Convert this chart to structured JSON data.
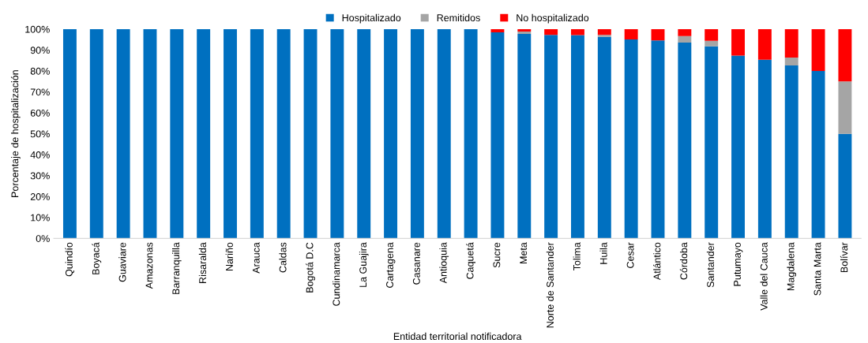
{
  "chart_data": {
    "type": "bar",
    "stacked": true,
    "xlabel": "Entidad territorial notificadora",
    "ylabel": "Porcentaje de hospitalización",
    "categories": [
      "Quindío",
      "Boyacá",
      "Guaviare",
      "Amazonas",
      "Barranquilla",
      "Risaralda",
      "Nariño",
      "Arauca",
      "Caldas",
      "Bogotá D.C",
      "Cundinamarca",
      "La Guajira",
      "Cartagena",
      "Casanare",
      "Antioquia",
      "Caquetá",
      "Sucre",
      "Meta",
      "Norte de Santander",
      "Tolima",
      "Huila",
      "Cesar",
      "Atlántico",
      "Córdoba",
      "Santander",
      "Putumayo",
      "Valle del Cauca",
      "Magdalena",
      "Santa Marta",
      "Bolívar"
    ],
    "series": [
      {
        "name": "Hospitalizado",
        "color": "#0070c0",
        "values": [
          100,
          100,
          100,
          100,
          100,
          100,
          100,
          100,
          100,
          100,
          100,
          100,
          100,
          100,
          100,
          100,
          98.5,
          97.7,
          97.3,
          97.2,
          96.3,
          95.1,
          94.6,
          93.6,
          91.8,
          87.4,
          85.4,
          82.7,
          80,
          50
        ]
      },
      {
        "name": "Remitidos",
        "color": "#a5a5a5",
        "values": [
          0,
          0,
          0,
          0,
          0,
          0,
          0,
          0,
          0,
          0,
          0,
          0,
          0,
          0,
          0,
          0,
          0,
          1.2,
          0,
          0,
          1,
          0,
          0,
          3.1,
          2.6,
          0,
          0,
          3.7,
          0,
          25
        ]
      },
      {
        "name": "No hospitalizado",
        "color": "#ff0000",
        "values": [
          0,
          0,
          0,
          0,
          0,
          0,
          0,
          0,
          0,
          0,
          0,
          0,
          0,
          0,
          0,
          0,
          1.5,
          1.1,
          2.7,
          2.8,
          2.7,
          4.9,
          5.4,
          3.3,
          5.6,
          12.6,
          14.6,
          13.6,
          20,
          25
        ]
      }
    ],
    "ylim": [
      0,
      100
    ],
    "yticks": [
      {
        "value": 0,
        "label": "0%"
      },
      {
        "value": 10,
        "label": "10%"
      },
      {
        "value": 20,
        "label": "20%"
      },
      {
        "value": 30,
        "label": "30%"
      },
      {
        "value": 40,
        "label": "40%"
      },
      {
        "value": 50,
        "label": "50%"
      },
      {
        "value": 60,
        "label": "60%"
      },
      {
        "value": 70,
        "label": "70%"
      },
      {
        "value": 80,
        "label": "80%"
      },
      {
        "value": 90,
        "label": "90%"
      },
      {
        "value": 100,
        "label": "100%"
      }
    ],
    "grid": false,
    "legend": "top"
  }
}
